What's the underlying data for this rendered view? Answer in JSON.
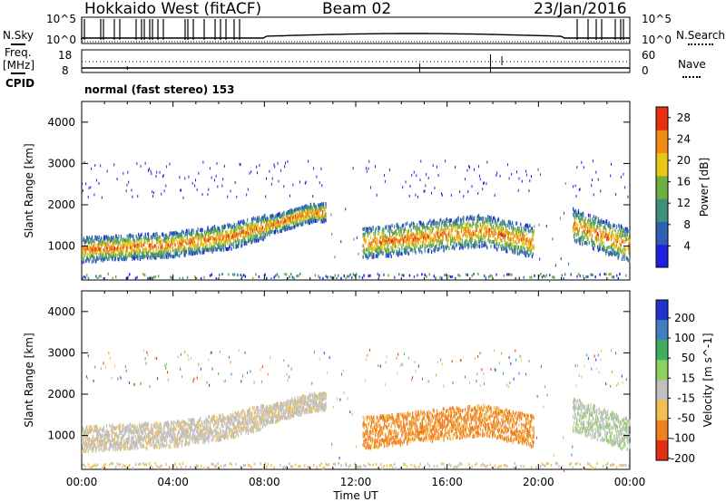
{
  "header": {
    "station": "Hokkaido West (fitACF)",
    "beam": "Beam 02",
    "date": "23/Jan/2016"
  },
  "status_panels": {
    "nsky_label": "N.Sky",
    "nsky_ticks": [
      "10^5",
      "10^0"
    ],
    "nsearch_label": "N.Search",
    "nsearch_ticks": [
      "10^5",
      "10^0"
    ],
    "freq_label_1": "Freq.",
    "freq_label_2": "[MHz]",
    "freq_ticks": [
      "18",
      "8"
    ],
    "nave_label": "Nave",
    "nave_ticks": [
      "60",
      "0"
    ],
    "cpid_label": "CPID",
    "cpid_value": "normal (fast stereo) 153"
  },
  "chart_data": [
    {
      "type": "heatmap",
      "panel": "power",
      "xlabel": "",
      "ylabel": "Slant Range [km]",
      "x_ticks": [
        "00:00",
        "04:00",
        "08:00",
        "12:00",
        "16:00",
        "20:00",
        "00:00"
      ],
      "xlim_hours": [
        0,
        24
      ],
      "y_ticks": [
        1000,
        2000,
        3000,
        4000
      ],
      "ylim": [
        180,
        4500
      ],
      "colorbar": {
        "label": "Power [dB]",
        "ticks": [
          4,
          8,
          12,
          16,
          20,
          24,
          28
        ],
        "range": [
          0,
          30
        ],
        "colors": [
          "#1f1fe0",
          "#2f5fb0",
          "#3f8f7f",
          "#6faf3f",
          "#e8c818",
          "#f08a10",
          "#e83010"
        ]
      },
      "features": [
        {
          "hours": [
            0.0,
            10.7
          ],
          "range_km": [
            700,
            2100
          ],
          "description_level_db": [
            4,
            24
          ]
        },
        {
          "hours": [
            12.3,
            19.8
          ],
          "range_km": [
            600,
            1900
          ],
          "description_level_db": [
            4,
            28
          ]
        },
        {
          "hours": [
            21.5,
            24.0
          ],
          "range_km": [
            800,
            1800
          ],
          "description_level_db": [
            4,
            24
          ]
        }
      ]
    },
    {
      "type": "heatmap",
      "panel": "velocity",
      "xlabel": "Time UT",
      "ylabel": "Slant Range [km]",
      "x_ticks": [
        "00:00",
        "04:00",
        "08:00",
        "12:00",
        "16:00",
        "20:00",
        "00:00"
      ],
      "xlim_hours": [
        0,
        24
      ],
      "y_ticks": [
        1000,
        2000,
        3000,
        4000
      ],
      "ylim": [
        180,
        4500
      ],
      "colorbar": {
        "label": "Velocity [m s^-1]",
        "ticks": [
          200,
          100,
          50,
          15,
          -15,
          -50,
          -100,
          -200
        ],
        "colors": [
          "#2233cc",
          "#3f7fbf",
          "#3faf5f",
          "#8fd05f",
          "#c0c0c0",
          "#f0c050",
          "#f08020",
          "#e03010"
        ]
      }
    }
  ]
}
